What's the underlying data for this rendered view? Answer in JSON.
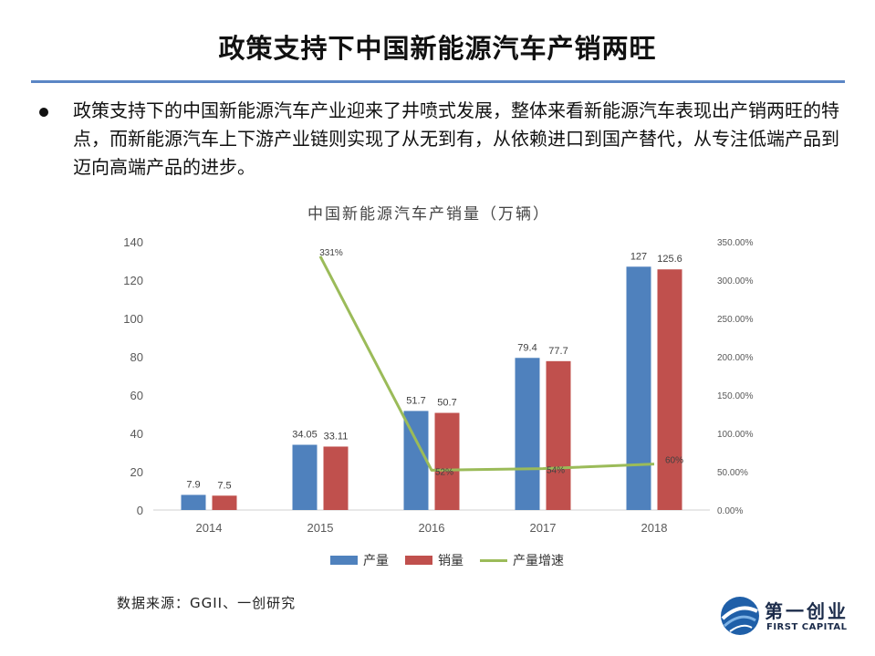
{
  "slide": {
    "title": "政策支持下中国新能源汽车产销两旺",
    "bullet": "政策支持下的中国新能源汽车产业迎来了井喷式发展，整体来看新能源汽车表现出产销两旺的特点，而新能源汽车上下游产业链则实现了从无到有，从依赖进口到国产替代，从专注低端产品到迈向高端产品的进步。",
    "source": "数据来源：GGII、一创研究",
    "logo_cn": "第一创业",
    "logo_en": "FIRST CAPITAL"
  },
  "chart_data": {
    "type": "bar",
    "title": "中国新能源汽车产销量（万辆）",
    "categories": [
      "2014",
      "2015",
      "2016",
      "2017",
      "2018"
    ],
    "series": [
      {
        "name": "产量",
        "type": "bar",
        "axis": "left",
        "color": "#4f81bd",
        "values": [
          7.9,
          34.05,
          51.7,
          79.4,
          127
        ],
        "labels": [
          "7.9",
          "34.05",
          "51.7",
          "79.4",
          "127"
        ]
      },
      {
        "name": "销量",
        "type": "bar",
        "axis": "left",
        "color": "#c0504d",
        "values": [
          7.5,
          33.11,
          50.7,
          77.7,
          125.6
        ],
        "labels": [
          "7.5",
          "33.11",
          "50.7",
          "77.7",
          "125.6"
        ]
      },
      {
        "name": "产量增速",
        "type": "line",
        "axis": "right",
        "color": "#9bbb59",
        "x": [
          "2015",
          "2016",
          "2017",
          "2018"
        ],
        "values": [
          331,
          52,
          54,
          60
        ],
        "labels": [
          "331%",
          "52%",
          "54%",
          "60%"
        ]
      }
    ],
    "y_left": {
      "min": 0,
      "max": 140,
      "ticks": [
        "0",
        "20",
        "40",
        "60",
        "80",
        "100",
        "120",
        "140"
      ]
    },
    "y_right": {
      "min": 0,
      "max": 350,
      "ticks": [
        "0.00%",
        "50.00%",
        "100.00%",
        "150.00%",
        "200.00%",
        "250.00%",
        "300.00%",
        "350.00%"
      ]
    },
    "grid": false,
    "legend_position": "bottom"
  }
}
